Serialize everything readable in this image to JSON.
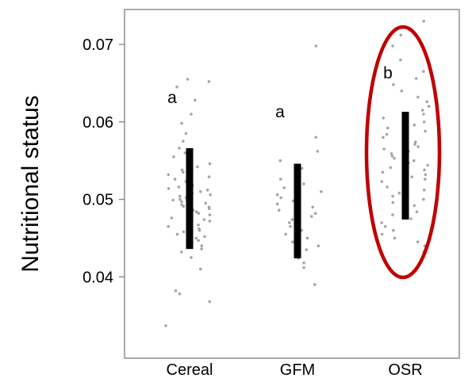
{
  "chart_data": {
    "type": "scatter",
    "title": "",
    "xlabel": "",
    "ylabel": "Nutritional status",
    "categories": [
      "Cereal",
      "GFM",
      "OSR"
    ],
    "yticks": [
      "0.04",
      "0.05",
      "0.06",
      "0.07"
    ],
    "ylim": [
      0.0295,
      0.0745
    ],
    "grid": false,
    "series": [
      {
        "category": "Cereal",
        "mean": 0.0501,
        "lower": 0.0436,
        "upper": 0.0566,
        "significance": "a",
        "points": [
          0.0337,
          0.0368,
          0.0378,
          0.0382,
          0.041,
          0.0425,
          0.0432,
          0.0436,
          0.044,
          0.0443,
          0.0447,
          0.045,
          0.0452,
          0.0455,
          0.0458,
          0.046,
          0.0462,
          0.0465,
          0.0467,
          0.047,
          0.0472,
          0.0474,
          0.0476,
          0.0478,
          0.048,
          0.0482,
          0.0484,
          0.0486,
          0.0488,
          0.049,
          0.0491,
          0.0493,
          0.0495,
          0.0497,
          0.0499,
          0.05,
          0.0502,
          0.0504,
          0.0506,
          0.0508,
          0.051,
          0.0512,
          0.0514,
          0.0516,
          0.0518,
          0.052,
          0.0523,
          0.0526,
          0.0529,
          0.0532,
          0.0535,
          0.0538,
          0.0542,
          0.0546,
          0.055,
          0.0555,
          0.056,
          0.0566,
          0.0575,
          0.0585,
          0.0598,
          0.061,
          0.0628,
          0.0645,
          0.0652,
          0.0655
        ]
      },
      {
        "category": "GFM",
        "mean": 0.0484,
        "lower": 0.0424,
        "upper": 0.0546,
        "significance": "a",
        "points": [
          0.039,
          0.0412,
          0.0418,
          0.0424,
          0.043,
          0.0435,
          0.044,
          0.0445,
          0.045,
          0.0455,
          0.046,
          0.0465,
          0.047,
          0.0474,
          0.0478,
          0.0482,
          0.0486,
          0.049,
          0.0494,
          0.0498,
          0.0502,
          0.0506,
          0.051,
          0.0515,
          0.052,
          0.0526,
          0.0532,
          0.054,
          0.055,
          0.0562,
          0.058,
          0.0698
        ]
      },
      {
        "category": "OSR",
        "mean": 0.0544,
        "lower": 0.0474,
        "upper": 0.0613,
        "significance": "b",
        "points": [
          0.0432,
          0.044,
          0.0445,
          0.045,
          0.0455,
          0.046,
          0.0465,
          0.047,
          0.0475,
          0.048,
          0.0484,
          0.0488,
          0.0492,
          0.0496,
          0.05,
          0.0504,
          0.0508,
          0.0512,
          0.0516,
          0.052,
          0.0523,
          0.0526,
          0.0529,
          0.0532,
          0.0535,
          0.0538,
          0.0541,
          0.0544,
          0.0547,
          0.055,
          0.0553,
          0.0556,
          0.0559,
          0.0562,
          0.0565,
          0.0568,
          0.0571,
          0.0574,
          0.0577,
          0.058,
          0.0584,
          0.0588,
          0.0592,
          0.0596,
          0.06,
          0.0605,
          0.061,
          0.0615,
          0.062,
          0.0626,
          0.0632,
          0.064,
          0.0648,
          0.0656,
          0.0665,
          0.068,
          0.0698,
          0.0712,
          0.073
        ]
      }
    ],
    "highlight": {
      "category": "OSR",
      "shape": "ellipse",
      "color": "#c00000"
    },
    "colors": {
      "points": "#a6a6a6",
      "ci": "#000000",
      "axis": "#808080"
    }
  }
}
